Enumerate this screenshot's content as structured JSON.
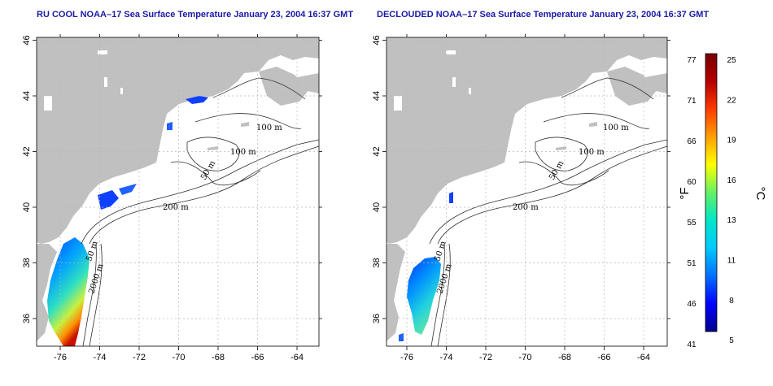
{
  "titles": {
    "left": "RU COOL NOAA–17 Sea Surface Temperature January 23, 2004 16:37 GMT",
    "right": "DECLOUDED NOAA–17 Sea Surface Temperature January 23, 2004 16:37 GMT"
  },
  "axes": {
    "x_ticks": [
      "-76",
      "-74",
      "-72",
      "-70",
      "-68",
      "-66",
      "-64"
    ],
    "y_ticks": [
      "36",
      "38",
      "40",
      "42",
      "44",
      "46"
    ]
  },
  "contour_labels": [
    "100 m",
    "100 m",
    "50 m",
    "200 m",
    "50 m",
    "2000 m"
  ],
  "colorbar": {
    "fahrenheit_ticks": [
      "77",
      "71",
      "66",
      "60",
      "55",
      "51",
      "46",
      "41"
    ],
    "celsius_ticks": [
      "25",
      "22",
      "19",
      "16",
      "13",
      "11",
      "8",
      "5"
    ],
    "fahrenheit_unit": "°F",
    "celsius_unit": "°C",
    "colors": [
      "#00008b",
      "#0000ff",
      "#0070ff",
      "#00c8ff",
      "#00e6c8",
      "#64f064",
      "#ffff00",
      "#ffa000",
      "#ff3c00",
      "#b40000",
      "#780000"
    ]
  },
  "colors": {
    "land": "#c0c0c0",
    "title": "#1a1aa6",
    "grid": "#b8b8b8"
  }
}
